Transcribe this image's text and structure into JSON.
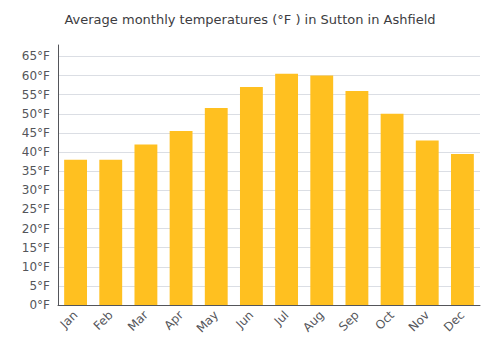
{
  "chart_data": {
    "type": "bar",
    "title": "Average monthly temperatures (°F ) in Sutton in Ashfield",
    "categories": [
      "Jan",
      "Feb",
      "Mar",
      "Apr",
      "May",
      "Jun",
      "Jul",
      "Aug",
      "Sep",
      "Oct",
      "Nov",
      "Dec"
    ],
    "values": [
      38,
      38,
      42,
      45.5,
      51.5,
      57,
      60.5,
      60,
      56,
      50,
      43,
      39.5
    ],
    "color": "#FFC020",
    "ylim": [
      0,
      68
    ],
    "yticks": [
      {
        "value": 0,
        "label": "0°F"
      },
      {
        "value": 5,
        "label": "5°F"
      },
      {
        "value": 10,
        "label": "10°F"
      },
      {
        "value": 15,
        "label": "15°F"
      },
      {
        "value": 20,
        "label": "20°F"
      },
      {
        "value": 25,
        "label": "25°F"
      },
      {
        "value": 30,
        "label": "30°F"
      },
      {
        "value": 35,
        "label": "35°F"
      },
      {
        "value": 40,
        "label": "40°F"
      },
      {
        "value": 45,
        "label": "45°F"
      },
      {
        "value": 50,
        "label": "50°F"
      },
      {
        "value": 55,
        "label": "55°F"
      },
      {
        "value": 60,
        "label": "60°F"
      },
      {
        "value": 65,
        "label": "65°F"
      }
    ],
    "grid": true
  }
}
